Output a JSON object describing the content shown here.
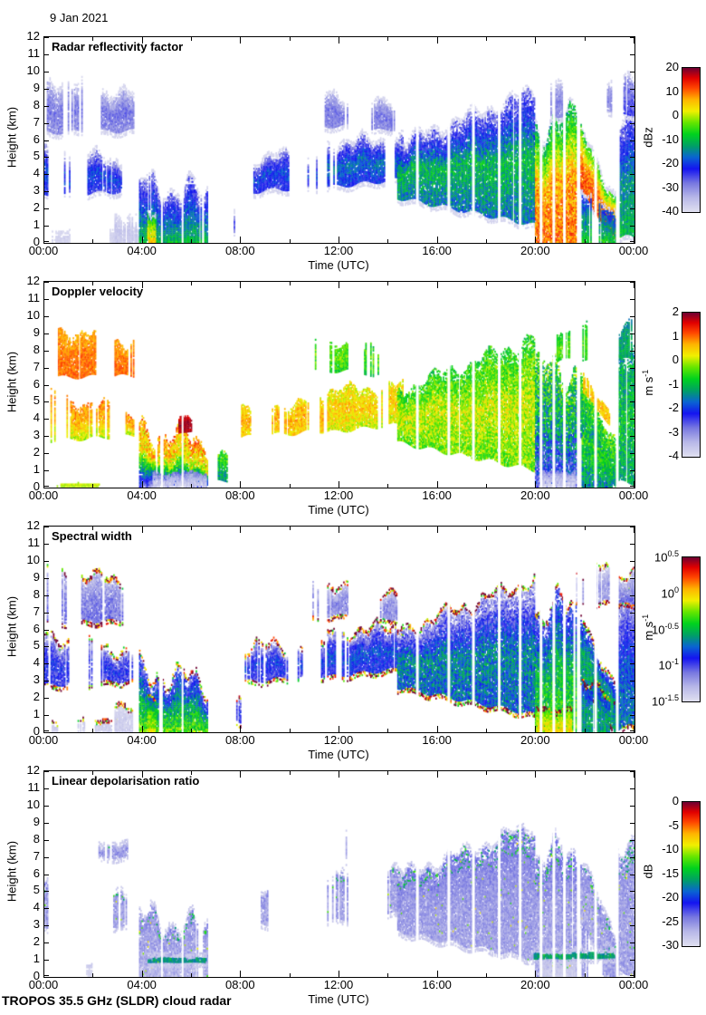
{
  "page": {
    "date_label": "9 Jan 2021",
    "footer": "TROPOS 35.5 GHz (SLDR) cloud radar"
  },
  "chart_data": {
    "type": "heatmap",
    "title": "9 Jan 2021",
    "instrument": "TROPOS 35.5 GHz (SLDR) cloud radar",
    "x": {
      "label": "Time (UTC)",
      "range_hours": [
        0,
        24
      ],
      "ticks": [
        "00:00",
        "04:00",
        "08:00",
        "12:00",
        "16:00",
        "20:00",
        "00:00"
      ]
    },
    "y": {
      "label": "Height (km)",
      "range_km": [
        0,
        12
      ],
      "ticks": [
        0,
        1,
        2,
        3,
        4,
        5,
        6,
        7,
        8,
        9,
        10,
        11,
        12
      ]
    },
    "panels": [
      {
        "key": "z",
        "title": "Radar reflectivity factor",
        "unit": "dBz",
        "min": -40,
        "max": 20,
        "cbar_ticks": [
          "20",
          "10",
          "0",
          "-10",
          "-20",
          "-30",
          "-40"
        ]
      },
      {
        "key": "v",
        "title": "Doppler velocity",
        "unit": "m s^-1",
        "min": -4,
        "max": 2,
        "cbar_ticks": [
          "2",
          "1",
          "0",
          "-1",
          "-2",
          "-3",
          "-4"
        ]
      },
      {
        "key": "sw",
        "title": "Spectral width",
        "unit": "m s^-1",
        "min": -1.5,
        "max": 0.5,
        "log_scale": true,
        "cbar_ticks": [
          "10^0.5",
          "10^0",
          "10^-0.5",
          "10^-1",
          "10^-1.5"
        ]
      },
      {
        "key": "l",
        "title": "Linear depolarisation ratio",
        "unit": "dB",
        "min": -30,
        "max": 0,
        "cbar_ticks": [
          "0",
          "-5",
          "-10",
          "-15",
          "-20",
          "-25",
          "-30"
        ]
      }
    ],
    "colormap_stops": [
      [
        0.0,
        "#E0E0F0"
      ],
      [
        0.1,
        "#B8B8E8"
      ],
      [
        0.2,
        "#7878E0"
      ],
      [
        0.3,
        "#1414F0"
      ],
      [
        0.38,
        "#0A64D2"
      ],
      [
        0.46,
        "#00A064"
      ],
      [
        0.54,
        "#00D21E"
      ],
      [
        0.62,
        "#64E600"
      ],
      [
        0.7,
        "#F0F000"
      ],
      [
        0.78,
        "#FFB400"
      ],
      [
        0.86,
        "#FF4600"
      ],
      [
        0.93,
        "#E10000"
      ],
      [
        1.0,
        "#6E0032"
      ]
    ],
    "data_gaps_utc": [
      15.17,
      16.45,
      17.45,
      18.5,
      19.35,
      20.2,
      20.72,
      21.15,
      21.72,
      22.42,
      23.3
    ],
    "minor_gaps_utc": [
      4.78,
      5.62
    ],
    "cloud_regions": [
      {
        "n": "cirrus-early",
        "t": [
          0.1,
          3.6
        ],
        "b": [
          6.4,
          6.5
        ],
        "tp": [
          9.3,
          8.4
        ],
        "c": 0.55,
        "w": 0.5,
        "z": [
          -30,
          -28,
          -34,
          3
        ],
        "v": [
          1.0,
          0.95,
          0.7,
          0.25
        ],
        "sw": [
          -1.1,
          -1.15,
          -1.3,
          0.12
        ],
        "l": null
      },
      {
        "n": "cirrus-ldr-patch",
        "t": [
          2.2,
          3.35
        ],
        "b": [
          6.9,
          6.95
        ],
        "tp": [
          7.75,
          7.6
        ],
        "c": 0.8,
        "w": 0.3,
        "z": null,
        "v": null,
        "sw": null,
        "l": [
          -26,
          -25,
          -27,
          1.5
        ]
      },
      {
        "n": "mid-early",
        "t": [
          0.0,
          3.6
        ],
        "b": [
          2.7,
          3.0
        ],
        "tp": [
          5.4,
          4.4
        ],
        "c": 0.5,
        "w": 0.5,
        "z": [
          -24,
          -19,
          -31,
          4
        ],
        "v": [
          0.0,
          0.6,
          0.9,
          0.35
        ],
        "sw": [
          -1.0,
          -0.9,
          -1.25,
          0.15
        ],
        "l": [
          -26,
          -26,
          -25,
          1.5,
          0.55
        ]
      },
      {
        "n": "ground-clutter",
        "t": [
          0.3,
          3.9
        ],
        "b": [
          0,
          0
        ],
        "tp": [
          0.4,
          0.5
        ],
        "c": 0.45,
        "w": 0.15,
        "z": [
          -38.5,
          -38,
          -37.5,
          1
        ],
        "v": null,
        "sw": [
          -1.45,
          -1.43,
          -1.4,
          0.05
        ],
        "l": [
          -29.5,
          -29,
          -29,
          0.5,
          0.5
        ]
      },
      {
        "n": "vel-ground-yellow",
        "t": [
          0.2,
          2.45
        ],
        "b": [
          0.02,
          0.02
        ],
        "tp": [
          0.18,
          0.18
        ],
        "c": 0.6,
        "w": 0.05,
        "z": null,
        "v": [
          0.0,
          0.05,
          -0.1,
          0.15
        ],
        "sw": null,
        "l": null
      },
      {
        "n": "gray-patch-morning",
        "t": [
          2.85,
          3.95
        ],
        "b": [
          0,
          0
        ],
        "tp": [
          1.6,
          1.1
        ],
        "c": 0.5,
        "w": 0.4,
        "z": [
          -37,
          -36,
          -38,
          1.5
        ],
        "v": null,
        "sw": [
          -1.42,
          -1.4,
          -1.45,
          0.05
        ],
        "l": null
      },
      {
        "n": "precip-columns",
        "t": [
          3.85,
          6.6
        ],
        "b": [
          0,
          0
        ],
        "tp": [
          3.4,
          2.6
        ],
        "c": 0.8,
        "w": 1.1,
        "z": [
          -10,
          -18,
          -28,
          4
        ],
        "v": [
          -2.6,
          0.2,
          0.85,
          0.6
        ],
        "sw": [
          -0.3,
          -0.6,
          -1.05,
          0.2
        ],
        "l": [
          -27,
          -26,
          -25,
          1.5
        ]
      },
      {
        "n": "precip-core-early",
        "t": [
          4.18,
          4.52
        ],
        "b": [
          0,
          0
        ],
        "tp": [
          2.0,
          1.5
        ],
        "c": 1,
        "w": 0.4,
        "z": [
          6,
          0,
          -8,
          3
        ],
        "v": [
          -3.0,
          -1.5,
          0.3,
          0.5
        ],
        "sw": [
          -0.1,
          -0.3,
          -0.7,
          0.15
        ],
        "l": null
      },
      {
        "n": "vel-purple-blob",
        "t": [
          5.45,
          5.98
        ],
        "b": [
          3.1,
          3.3
        ],
        "tp": [
          4.05,
          3.9
        ],
        "c": 1,
        "w": 0.2,
        "z": null,
        "v": [
          1.7,
          1.85,
          1.6,
          0.15
        ],
        "sw": null,
        "l": null
      },
      {
        "n": "vel-ground-gray",
        "t": [
          4.4,
          6.55
        ],
        "b": [
          0,
          0
        ],
        "tp": [
          0.85,
          0.8
        ],
        "c": 0.9,
        "w": 0.15,
        "z": null,
        "v": [
          -3.8,
          -3.5,
          -2.8,
          0.3
        ],
        "sw": null,
        "l": null
      },
      {
        "n": "ldr-melt-line-1",
        "t": [
          4.2,
          6.55
        ],
        "b": [
          0.8,
          0.8
        ],
        "tp": [
          1.05,
          1.05
        ],
        "c": 0.9,
        "w": 0.05,
        "z": null,
        "v": null,
        "sw": null,
        "l": [
          -17,
          -16.5,
          -17.5,
          1.2
        ]
      },
      {
        "n": "low-scattered",
        "t": [
          6.6,
          8.15
        ],
        "b": [
          0.25,
          0.5
        ],
        "tp": [
          2.4,
          1.4
        ],
        "c": 0.32,
        "w": 0.5,
        "z": [
          -27,
          -25,
          -31,
          3
        ],
        "v": [
          -1.5,
          -0.8,
          -0.4,
          0.5
        ],
        "sw": [
          -1.0,
          -0.9,
          -1.2,
          0.15
        ],
        "l": [
          -27,
          -26,
          -26,
          1,
          0.4
        ]
      },
      {
        "n": "mid-midday",
        "t": [
          8.0,
          11.4
        ],
        "b": [
          2.9,
          3.3
        ],
        "tp": [
          4.7,
          5.0
        ],
        "c": 0.5,
        "w": 0.55,
        "z": [
          -24,
          -19,
          -30,
          4
        ],
        "v": [
          0.4,
          0.7,
          0.3,
          0.35
        ],
        "sw": [
          -1.0,
          -0.85,
          -1.2,
          0.15
        ],
        "l": [
          -26,
          -26,
          -25,
          1.5,
          0.45
        ]
      },
      {
        "n": "mid-midday-2",
        "t": [
          11.5,
          14.6
        ],
        "b": [
          3.2,
          3.7
        ],
        "tp": [
          5.6,
          5.9
        ],
        "c": 0.72,
        "w": 0.5,
        "z": [
          -22,
          -16,
          -29,
          4
        ],
        "v": [
          0.1,
          0.5,
          0.2,
          0.4
        ],
        "sw": [
          -0.95,
          -0.8,
          -1.2,
          0.15
        ],
        "l": [
          -26,
          -26,
          -25,
          1.5,
          0.5
        ]
      },
      {
        "n": "high-midday",
        "t": [
          10.9,
          12.35
        ],
        "b": [
          6.7,
          6.8
        ],
        "tp": [
          8.6,
          8.2
        ],
        "c": 0.5,
        "w": 0.4,
        "z": [
          -30,
          -28,
          -33,
          2.5
        ],
        "v": [
          -0.7,
          -0.3,
          -0.6,
          0.4
        ],
        "sw": [
          -1.2,
          -1.15,
          -1.35,
          0.1
        ],
        "l": [
          -27,
          -26,
          -27,
          1,
          0.3
        ]
      },
      {
        "n": "high-midday-2",
        "t": [
          13.0,
          14.4
        ],
        "b": [
          6.5,
          6.6
        ],
        "tp": [
          8.1,
          7.7
        ],
        "c": 0.45,
        "w": 0.4,
        "z": [
          -30,
          -28,
          -33,
          2.5
        ],
        "v": [
          -0.8,
          -0.4,
          -0.7,
          0.4
        ],
        "sw": [
          -1.2,
          -1.15,
          -1.35,
          0.1
        ],
        "l": null
      },
      {
        "n": "front-main",
        "t": [
          14.35,
          19.95
        ],
        "b": [
          2.6,
          1.0
        ],
        "tp": [
          5.6,
          8.7
        ],
        "c": 0.97,
        "w": 0.55,
        "z": [
          -16,
          -10,
          -29,
          5
        ],
        "v": [
          -0.3,
          0.1,
          -0.7,
          0.5
        ],
        "sw": [
          -0.75,
          -0.65,
          -1.25,
          0.2
        ],
        "l": [
          -26,
          -25.5,
          -24,
          1.3
        ]
      },
      {
        "n": "precip-heavy",
        "t": [
          19.95,
          21.65
        ],
        "b": [
          0,
          0
        ],
        "tp": [
          6.8,
          7.0
        ],
        "c": 0.92,
        "w": 1.4,
        "z": [
          10,
          7,
          -12,
          5
        ],
        "v": [
          -2.8,
          -1.2,
          -0.6,
          0.9
        ],
        "sw": [
          -0.35,
          -0.5,
          -1.0,
          0.2
        ],
        "l": [
          -26,
          -26,
          -24,
          1.5
        ]
      },
      {
        "n": "heavy-ground-orange-w",
        "t": [
          20.0,
          21.45
        ],
        "b": [
          0,
          0
        ],
        "tp": [
          1.15,
          1.1
        ],
        "c": 0.95,
        "w": 0.2,
        "z": null,
        "v": null,
        "sw": [
          -0.05,
          -0.1,
          -0.3,
          0.12
        ],
        "l": null
      },
      {
        "n": "vel-ground-gray-2",
        "t": [
          20.25,
          21.6
        ],
        "b": [
          0,
          0
        ],
        "tp": [
          0.9,
          0.85
        ],
        "c": 0.9,
        "w": 0.15,
        "z": null,
        "v": [
          -3.8,
          -3.6,
          -3.0,
          0.3
        ],
        "sw": null,
        "l": [
          -29,
          -28.5,
          -28,
          0.7
        ]
      },
      {
        "n": "precip-slant",
        "t": [
          21.8,
          23.25
        ],
        "b": [
          3.0,
          0.0
        ],
        "tp": [
          6.5,
          2.3
        ],
        "c": 0.95,
        "w": 0.5,
        "z": [
          12,
          9,
          -8,
          4
        ],
        "v": [
          -1.4,
          -0.9,
          -0.4,
          0.6
        ],
        "sw": [
          -0.6,
          -0.55,
          -0.9,
          0.15
        ],
        "l": [
          -26.5,
          -26,
          -25,
          1.5
        ]
      },
      {
        "n": "slant-under",
        "t": [
          21.85,
          23.3
        ],
        "b": [
          0,
          0
        ],
        "tp": [
          3.0,
          1.2
        ],
        "c": 0.7,
        "w": 0.5,
        "z": [
          -8,
          -14,
          -20,
          4
        ],
        "v": [
          -1.5,
          -1.0,
          -0.5,
          0.6
        ],
        "sw": [
          -0.6,
          -0.6,
          -0.9,
          0.15
        ],
        "l": [
          -26,
          -26,
          -25,
          1.5
        ]
      },
      {
        "n": "slant-top-orange-v",
        "t": [
          21.9,
          23.0
        ],
        "b": [
          5.5,
          3.6
        ],
        "tp": [
          6.4,
          4.4
        ],
        "c": 0.85,
        "w": 0.3,
        "z": null,
        "v": [
          0.5,
          0.6,
          0.4,
          0.3
        ],
        "sw": null,
        "l": null
      },
      {
        "n": "ldr-melt-line-2",
        "t": [
          19.9,
          23.25
        ],
        "b": [
          1.0,
          1.05
        ],
        "tp": [
          1.3,
          1.35
        ],
        "c": 0.85,
        "w": 0.08,
        "z": null,
        "v": null,
        "sw": null,
        "l": [
          -16.5,
          -16,
          -17,
          1.2
        ]
      },
      {
        "n": "end-columns",
        "t": [
          23.3,
          24.0
        ],
        "b": [
          0.2,
          0.3
        ],
        "tp": [
          7.4,
          7.5
        ],
        "c": 0.85,
        "w": 0.8,
        "z": [
          -10,
          -15,
          -28,
          4
        ],
        "v": [
          -1.2,
          -0.9,
          -1.3,
          0.5
        ],
        "sw": [
          -0.7,
          -0.8,
          -1.25,
          0.15
        ],
        "l": [
          -26,
          -26,
          -25,
          1.5
        ]
      },
      {
        "n": "end-top",
        "t": [
          23.35,
          24.0
        ],
        "b": [
          7.4,
          7.5
        ],
        "tp": [
          9.0,
          9.4
        ],
        "c": 0.7,
        "w": 0.5,
        "z": [
          -24,
          -27,
          -31,
          3
        ],
        "v": [
          -1.1,
          -1.2,
          -1.4,
          0.3
        ],
        "sw": [
          -1.1,
          -1.2,
          -1.35,
          0.1
        ],
        "l": null
      },
      {
        "n": "high-late",
        "t": [
          19.98,
          23.2
        ],
        "b": [
          7.3,
          7.6
        ],
        "tp": [
          9.0,
          9.4
        ],
        "c": 0.3,
        "w": 0.5,
        "z": [
          -31,
          -29,
          -34,
          2.5
        ],
        "v": [
          -0.6,
          -0.4,
          -0.8,
          0.3
        ],
        "sw": [
          -1.25,
          -1.2,
          -1.4,
          0.1
        ],
        "l": null
      }
    ]
  }
}
